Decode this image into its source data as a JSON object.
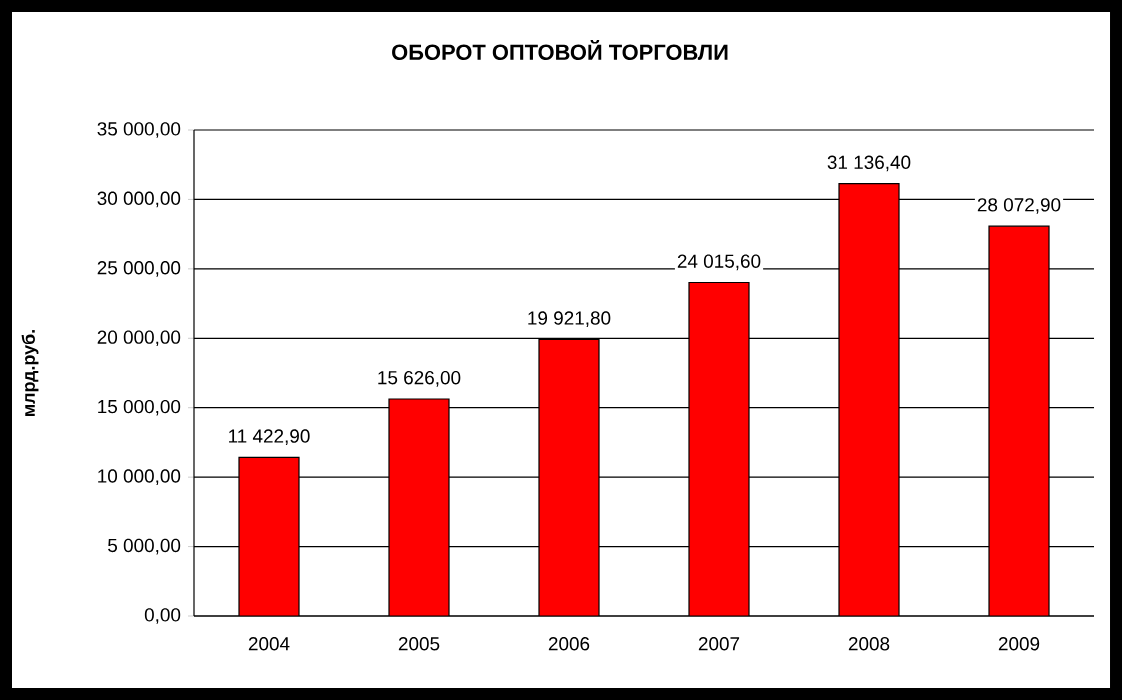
{
  "chart_data": {
    "type": "bar",
    "title": "ОБОРОТ ОПТОВОЙ ТОРГОВЛИ",
    "ylabel": "млрд.руб.",
    "categories": [
      "2004",
      "2005",
      "2006",
      "2007",
      "2008",
      "2009"
    ],
    "values": [
      11422.9,
      15626.0,
      19921.8,
      24015.6,
      31136.4,
      28072.9
    ],
    "value_labels": [
      "11 422,90",
      "15 626,00",
      "19 921,80",
      "24 015,60",
      "31 136,40",
      "28 072,90"
    ],
    "color": "#ff0000",
    "ylim": [
      0,
      35000
    ],
    "yticks": [
      {
        "value": 0,
        "label": "0,00"
      },
      {
        "value": 5000,
        "label": "5 000,00"
      },
      {
        "value": 10000,
        "label": "10 000,00"
      },
      {
        "value": 15000,
        "label": "15 000,00"
      },
      {
        "value": 20000,
        "label": "20 000,00"
      },
      {
        "value": 25000,
        "label": "25 000,00"
      },
      {
        "value": 30000,
        "label": "30 000,00"
      },
      {
        "value": 35000,
        "label": "35 000,00"
      }
    ],
    "grid": "y"
  }
}
